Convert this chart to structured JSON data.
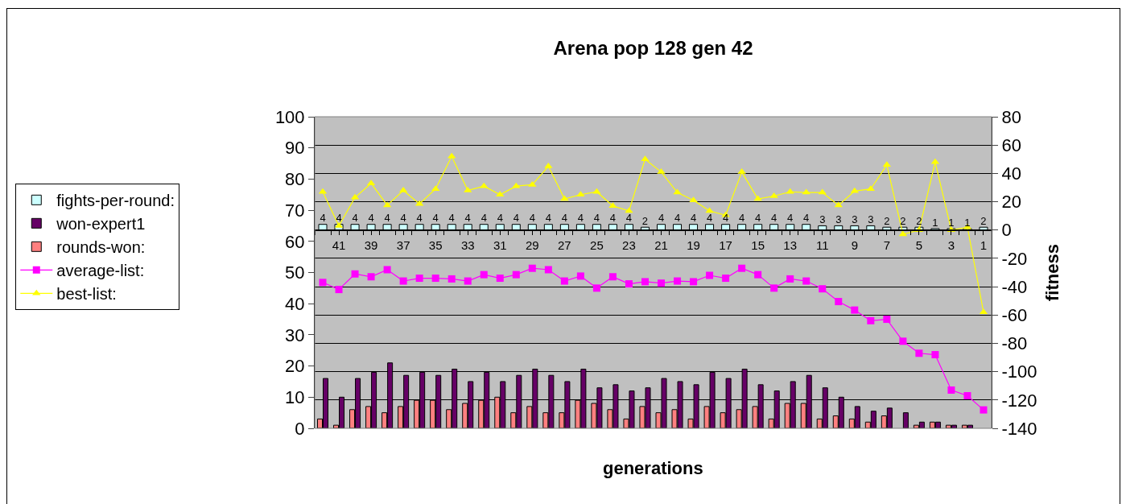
{
  "chart_data": {
    "type": "bar",
    "title": "Arena pop 128 gen 42",
    "xlabel": "generations",
    "y2label": "fitness",
    "categories": [
      null,
      "41",
      null,
      "39",
      null,
      "37",
      null,
      "35",
      null,
      "33",
      null,
      "31",
      null,
      "29",
      null,
      "27",
      null,
      "25",
      null,
      "23",
      null,
      "21",
      null,
      "19",
      null,
      "17",
      null,
      "15",
      null,
      "13",
      null,
      "11",
      null,
      "9",
      null,
      "7",
      null,
      "5",
      null,
      "3",
      null,
      "1"
    ],
    "series": [
      {
        "name": "fights-per-round:",
        "axis": "y2",
        "color": "#ccffff",
        "values": [
          4,
          4,
          4,
          4,
          4,
          4,
          4,
          4,
          4,
          4,
          4,
          4,
          4,
          4,
          4,
          4,
          4,
          4,
          4,
          4,
          2,
          4,
          4,
          4,
          4,
          4,
          4,
          4,
          4,
          4,
          4,
          3,
          3,
          3,
          3,
          2,
          2,
          2,
          1,
          1,
          1,
          2
        ],
        "value_labels": [
          "4",
          "4",
          "4",
          "4",
          "4",
          "4",
          "4",
          "4",
          "4",
          "4",
          "4",
          "4",
          "4",
          "4",
          "4",
          "4",
          "4",
          "4",
          "4",
          "4",
          "2",
          "4",
          "4",
          "4",
          "4",
          "4",
          "4",
          "4",
          "4",
          "4",
          "4",
          "3",
          "3",
          "3",
          "3",
          "2",
          "2",
          "2",
          "1",
          "1",
          "1",
          "2"
        ]
      },
      {
        "name": "won-expert1",
        "color": "#660066",
        "values": [
          16,
          10,
          16,
          18,
          21,
          17,
          18,
          17,
          19,
          15,
          18,
          15,
          17,
          19,
          17,
          15,
          19,
          13,
          14,
          12,
          13,
          16,
          15,
          14,
          18,
          16,
          19,
          14,
          12,
          15,
          17,
          13,
          10,
          7,
          5.5,
          6.5,
          5,
          2,
          2,
          1,
          1,
          null
        ]
      },
      {
        "name": "rounds-won:",
        "color": "#ff8080",
        "values": [
          3,
          1,
          6,
          7,
          5,
          7,
          9,
          9,
          6,
          8,
          9,
          10,
          5,
          7,
          5,
          5,
          9,
          8,
          6,
          3,
          7,
          5,
          6,
          3,
          7,
          5,
          6,
          7,
          3,
          8,
          8,
          3,
          4,
          3,
          2,
          4,
          null,
          1,
          2,
          1,
          1,
          null
        ]
      },
      {
        "name": "average-list:",
        "type": "line",
        "axis": "y2",
        "marker": "square",
        "color": "#ff00ff",
        "values": [
          -37,
          -42,
          -31,
          -33,
          -28,
          -36,
          -34,
          -34,
          -34.5,
          -36,
          -31.5,
          -34,
          -31.5,
          -27,
          -28,
          -36,
          -32.5,
          -41,
          -33,
          -38,
          -36.5,
          -37.5,
          -36,
          -36.5,
          -32,
          -34,
          -27,
          -31.5,
          -41,
          -34.5,
          -36,
          -41.5,
          -50.5,
          -56.5,
          -64,
          -63,
          -78.5,
          -87,
          -88,
          -113,
          -117,
          -127
        ]
      },
      {
        "name": "best-list:",
        "type": "line",
        "axis": "y2",
        "marker": "triangle",
        "color": "#ffff00",
        "values": [
          27,
          3,
          23,
          33,
          17.5,
          28,
          18.5,
          29,
          52,
          28,
          31,
          25,
          31,
          32,
          45,
          22,
          25,
          27,
          17,
          13.5,
          50,
          41,
          26.5,
          21,
          13.5,
          10.5,
          41,
          22,
          24,
          27,
          26.5,
          26.5,
          17.5,
          27.5,
          29,
          46,
          -3,
          0,
          48,
          0,
          2,
          -58
        ]
      }
    ],
    "ylim": [
      0,
      100
    ],
    "yticks": [
      0,
      10,
      20,
      30,
      40,
      50,
      60,
      70,
      80,
      90,
      100
    ],
    "y2lim": [
      -140,
      80
    ],
    "y2ticks": [
      -140,
      -120,
      -100,
      -80,
      -60,
      -40,
      -20,
      0,
      20,
      40,
      60,
      80
    ],
    "grid": true,
    "legend": "left"
  }
}
